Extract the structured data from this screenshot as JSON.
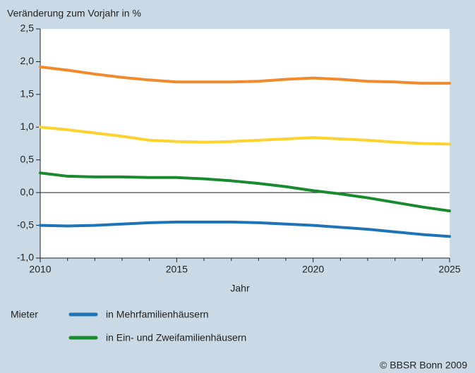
{
  "chart_data": {
    "type": "line",
    "ylabel": "Veränderung zum Vorjahr in %",
    "xlabel": "Jahr",
    "source": "© BBSR Bonn 2009",
    "legend_title": "Mieter",
    "x": [
      2010,
      2011,
      2012,
      2013,
      2014,
      2015,
      2016,
      2017,
      2018,
      2019,
      2020,
      2021,
      2022,
      2023,
      2024,
      2025
    ],
    "series": [
      {
        "color": "#f08a2c",
        "values": [
          1.92,
          1.87,
          1.81,
          1.76,
          1.72,
          1.69,
          1.69,
          1.69,
          1.7,
          1.73,
          1.75,
          1.73,
          1.7,
          1.69,
          1.67,
          1.67
        ]
      },
      {
        "color": "#fcd22e",
        "values": [
          1.0,
          0.96,
          0.91,
          0.86,
          0.8,
          0.78,
          0.77,
          0.78,
          0.8,
          0.82,
          0.84,
          0.82,
          0.8,
          0.77,
          0.75,
          0.74
        ]
      },
      {
        "name": "in Ein- und Zweifamilienhäusern",
        "color": "#1a8a2e",
        "values": [
          0.3,
          0.25,
          0.24,
          0.24,
          0.23,
          0.23,
          0.21,
          0.18,
          0.14,
          0.09,
          0.03,
          -0.02,
          -0.08,
          -0.15,
          -0.22,
          -0.28
        ]
      },
      {
        "name": "in Mehrfamilienhäusern",
        "color": "#1f73b7",
        "values": [
          -0.5,
          -0.51,
          -0.5,
          -0.48,
          -0.46,
          -0.45,
          -0.45,
          -0.45,
          -0.46,
          -0.48,
          -0.5,
          -0.53,
          -0.56,
          -0.6,
          -0.64,
          -0.67
        ]
      }
    ],
    "legend_order": [
      3,
      2
    ],
    "xlim": [
      2010,
      2025
    ],
    "xticks": [
      2010,
      2015,
      2020,
      2025
    ],
    "x_minor_ticks": [
      2011,
      2012,
      2013,
      2014,
      2016,
      2017,
      2018,
      2019,
      2021,
      2022,
      2023,
      2024
    ],
    "ylim": [
      -1.0,
      2.5
    ],
    "yticks": [
      {
        "value": -1.0,
        "label": "-1,0"
      },
      {
        "value": -0.5,
        "label": "-0,5"
      },
      {
        "value": 0,
        "label": "0,0"
      },
      {
        "value": 0.5,
        "label": "0,5"
      },
      {
        "value": 1.0,
        "label": "1,0"
      },
      {
        "value": 1.5,
        "label": "1,5"
      },
      {
        "value": 2.0,
        "label": "2,0"
      },
      {
        "value": 2.5,
        "label": "2,5"
      }
    ],
    "zero_line": true
  }
}
